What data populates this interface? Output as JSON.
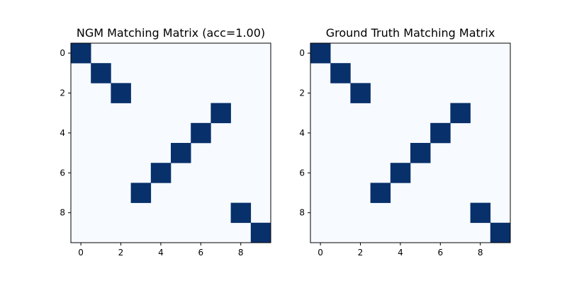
{
  "chart_data": [
    {
      "type": "heatmap",
      "title": "NGM Matching Matrix (acc=1.00)",
      "xlabel": "",
      "ylabel": "",
      "rows": 10,
      "cols": 10,
      "xticks": [
        0,
        2,
        4,
        6,
        8
      ],
      "yticks": [
        0,
        2,
        4,
        6,
        8
      ],
      "matches": [
        [
          0,
          0
        ],
        [
          1,
          1
        ],
        [
          2,
          2
        ],
        [
          3,
          7
        ],
        [
          4,
          6
        ],
        [
          5,
          5
        ],
        [
          6,
          4
        ],
        [
          7,
          3
        ],
        [
          8,
          8
        ],
        [
          9,
          9
        ]
      ],
      "value_range": [
        0,
        1
      ],
      "colormap": "Blues",
      "grid": false,
      "legend": "none"
    },
    {
      "type": "heatmap",
      "title": "Ground Truth Matching Matrix",
      "xlabel": "",
      "ylabel": "",
      "rows": 10,
      "cols": 10,
      "xticks": [
        0,
        2,
        4,
        6,
        8
      ],
      "yticks": [
        0,
        2,
        4,
        6,
        8
      ],
      "matches": [
        [
          0,
          0
        ],
        [
          1,
          1
        ],
        [
          2,
          2
        ],
        [
          3,
          7
        ],
        [
          4,
          6
        ],
        [
          5,
          5
        ],
        [
          6,
          4
        ],
        [
          7,
          3
        ],
        [
          8,
          8
        ],
        [
          9,
          9
        ]
      ],
      "value_range": [
        0,
        1
      ],
      "colormap": "Blues",
      "grid": false,
      "legend": "none"
    }
  ],
  "colors": {
    "high": "#08306b",
    "low": "#f7fbff",
    "axis": "#000000"
  }
}
